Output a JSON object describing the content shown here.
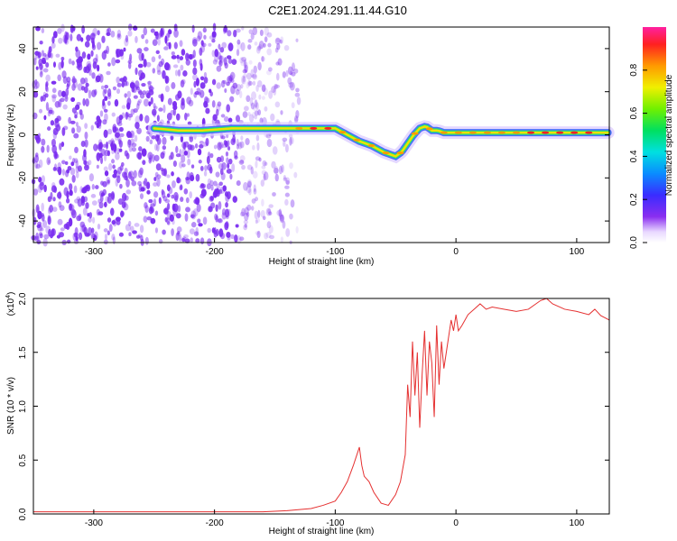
{
  "page": {
    "title": "C2E1.2024.291.11.44.G10"
  },
  "colors": {
    "snr_line": "#e53030",
    "ridge_low": "#4a6cff",
    "ridge_high": "#ff2020",
    "noise": "#7a2cf0",
    "frame": "#000000"
  },
  "chart_data": [
    {
      "type": "heatmap",
      "title": "C2E1.2024.291.11.44.G10",
      "xlabel": "Height of straight line (km)",
      "ylabel": "Frequency (Hz)",
      "xlim": [
        -350,
        127
      ],
      "ylim": [
        -50,
        50
      ],
      "x_ticks": [
        -300,
        -200,
        -100,
        0,
        100
      ],
      "y_ticks": [
        -40,
        -20,
        0,
        20,
        40
      ],
      "colorbar": {
        "label": "Normalized spectral amplitude",
        "range": [
          0,
          1
        ],
        "ticks": [
          "0.0",
          "0.2",
          "0.4",
          "0.6",
          "0.8"
        ]
      },
      "ridge": {
        "x": [
          -250,
          -230,
          -210,
          -185,
          -170,
          -150,
          -130,
          -115,
          -100,
          -90,
          -80,
          -70,
          -60,
          -50,
          -45,
          -40,
          -35,
          -30,
          -25,
          -20,
          -15,
          -10,
          -5,
          0,
          20,
          40,
          60,
          80,
          100,
          127
        ],
        "frequency": [
          3,
          2,
          2,
          3,
          3,
          3,
          3,
          3,
          3,
          0,
          -3,
          -5,
          -8,
          -10,
          -8,
          -4,
          0,
          3,
          4,
          2,
          2,
          1,
          1,
          1,
          1,
          1,
          1,
          1,
          1,
          1
        ]
      }
    },
    {
      "type": "line",
      "xlabel": "Height of straight line (km)",
      "ylabel": "SNR (10 * v/v)",
      "y_multiplier": "(x10",
      "y_multiplier_exp": "4",
      "xlim": [
        -350,
        127
      ],
      "ylim": [
        0,
        2.0
      ],
      "x_ticks": [
        -300,
        -200,
        -100,
        0,
        100
      ],
      "y_ticks": [
        "0.0",
        "0.5",
        "1.0",
        "1.5",
        "2.0"
      ],
      "series": [
        {
          "x": [
            -350,
            -300,
            -250,
            -200,
            -160,
            -140,
            -120,
            -110,
            -100,
            -95,
            -90,
            -85,
            -80,
            -78,
            -76,
            -72,
            -68,
            -62,
            -56,
            -50,
            -46,
            -42,
            -40,
            -38,
            -36,
            -34,
            -32,
            -30,
            -28,
            -26,
            -24,
            -22,
            -20,
            -18,
            -16,
            -14,
            -12,
            -10,
            -8,
            -6,
            -4,
            -2,
            0,
            2,
            5,
            10,
            15,
            20,
            25,
            30,
            40,
            50,
            60,
            70,
            75,
            80,
            90,
            100,
            110,
            115,
            120,
            127
          ],
          "y": [
            0.02,
            0.02,
            0.02,
            0.02,
            0.02,
            0.03,
            0.05,
            0.08,
            0.12,
            0.2,
            0.3,
            0.45,
            0.62,
            0.45,
            0.35,
            0.3,
            0.2,
            0.1,
            0.08,
            0.18,
            0.3,
            0.55,
            1.2,
            0.9,
            1.6,
            1.1,
            1.5,
            0.8,
            1.3,
            1.7,
            1.1,
            1.6,
            1.4,
            0.9,
            1.75,
            1.2,
            1.6,
            1.35,
            1.5,
            1.65,
            1.8,
            1.7,
            1.85,
            1.7,
            1.75,
            1.85,
            1.9,
            1.95,
            1.9,
            1.92,
            1.9,
            1.88,
            1.9,
            1.98,
            2.0,
            1.95,
            1.9,
            1.88,
            1.85,
            1.9,
            1.84,
            1.8
          ]
        }
      ]
    }
  ]
}
